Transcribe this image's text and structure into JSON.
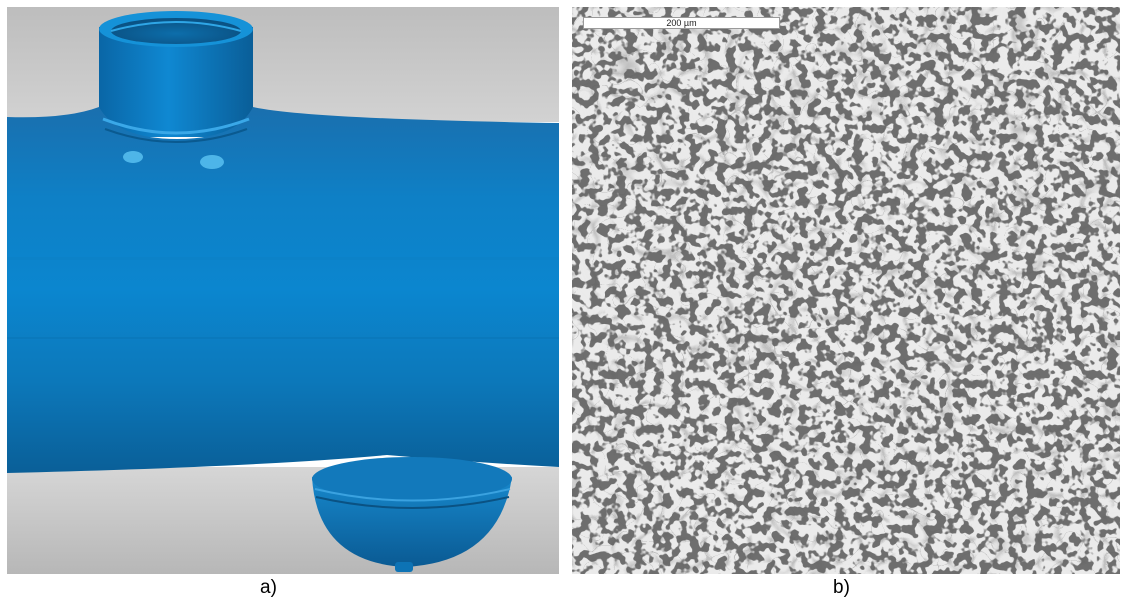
{
  "panels": [
    {
      "id": "a",
      "caption": "a)",
      "subject": "3d-scan-pipe-tee"
    },
    {
      "id": "b",
      "caption": "b)",
      "subject": "micrograph-grain-structure",
      "scale_bar": "200 µm"
    }
  ],
  "colors": {
    "pipe_blue": "#0e6fb0",
    "background_gray": "#c9c9c9",
    "micrograph_bg": "#e6e6e6",
    "grain_boundary": "#6e6e6e",
    "inclusion_dark": "#2a2a2a"
  }
}
